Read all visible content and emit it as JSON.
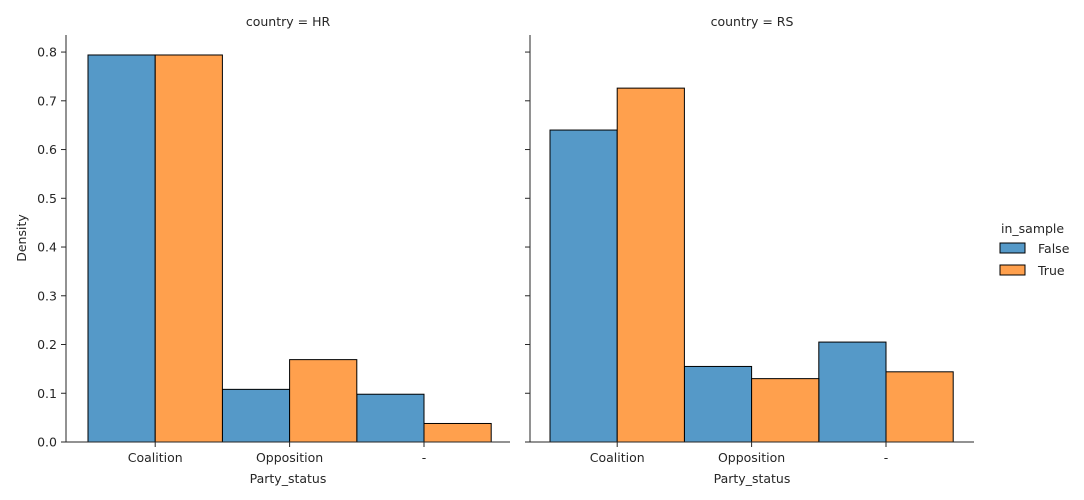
{
  "chart_data": {
    "type": "bar",
    "categories": [
      "Coalition",
      "Opposition",
      "-"
    ],
    "xlabel": "Party_status",
    "ylabel": "Density",
    "ylim": [
      0,
      0.835
    ],
    "yticks": [
      "0.0",
      "0.1",
      "0.2",
      "0.3",
      "0.4",
      "0.5",
      "0.6",
      "0.7",
      "0.8"
    ],
    "ytick_values": [
      0,
      0.1,
      0.2,
      0.3,
      0.4,
      0.5,
      0.6,
      0.7,
      0.8
    ],
    "grid": false,
    "legend": {
      "title": "in_sample",
      "placement": "right",
      "entries": [
        {
          "name": "False",
          "color": "#5599c8"
        },
        {
          "name": "True",
          "color": "#ffa04d"
        }
      ]
    },
    "facets": [
      {
        "title": "country = HR",
        "series": [
          {
            "name": "False",
            "values": [
              0.794,
              0.108,
              0.098
            ]
          },
          {
            "name": "True",
            "values": [
              0.794,
              0.169,
              0.038
            ]
          }
        ]
      },
      {
        "title": "country = RS",
        "series": [
          {
            "name": "False",
            "values": [
              0.64,
              0.155,
              0.205
            ]
          },
          {
            "name": "True",
            "values": [
              0.726,
              0.13,
              0.144
            ]
          }
        ]
      }
    ]
  }
}
